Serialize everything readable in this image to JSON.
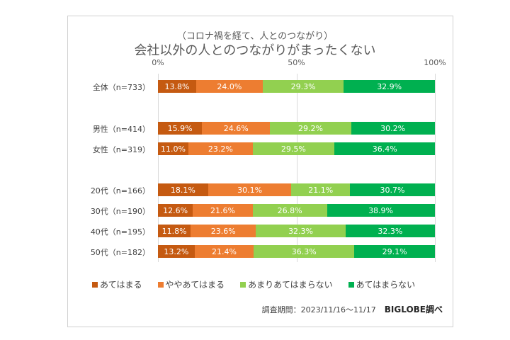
{
  "chart_data": {
    "type": "bar",
    "orientation": "horizontal",
    "stacked": "100%",
    "subtitle": "（コロナ禍を経て、人とのつながり）",
    "title": "会社以外の人とのつながりがまったくない",
    "x_ticks": [
      "0%",
      "50%",
      "100%"
    ],
    "xlim": [
      0,
      100
    ],
    "grid": true,
    "legend_position": "bottom",
    "categories": [
      "全体（n=733）",
      "男性（n=414）",
      "女性（n=319）",
      "20代（n=166）",
      "30代（n=190）",
      "40代（n=195）",
      "50代（n=182）"
    ],
    "series": [
      {
        "name": "あてはまる",
        "color": "#C55A11",
        "values": [
          13.8,
          15.9,
          11.0,
          18.1,
          12.6,
          11.8,
          13.2
        ],
        "labels": [
          "13.8%",
          "15.9%",
          "11.0%",
          "18.1%",
          "12.6%",
          "11.8%",
          "13.2%"
        ]
      },
      {
        "name": "ややあてはまる",
        "color": "#ED7D31",
        "values": [
          24.0,
          24.6,
          23.2,
          30.1,
          21.6,
          23.6,
          21.4
        ],
        "labels": [
          "24.0%",
          "24.6%",
          "23.2%",
          "30.1%",
          "21.6%",
          "23.6%",
          "21.4%"
        ]
      },
      {
        "name": "あまりあてはまらない",
        "color": "#92D050",
        "values": [
          29.3,
          29.2,
          29.5,
          21.1,
          26.8,
          32.3,
          36.3
        ],
        "labels": [
          "29.3%",
          "29.2%",
          "29.5%",
          "21.1%",
          "26.8%",
          "32.3%",
          "36.3%"
        ]
      },
      {
        "name": "あてはまらない",
        "color": "#00B050",
        "values": [
          32.9,
          30.2,
          36.4,
          30.7,
          38.9,
          32.3,
          29.1
        ],
        "labels": [
          "32.9%",
          "30.2%",
          "36.4%",
          "30.7%",
          "38.9%",
          "32.3%",
          "29.1%"
        ]
      }
    ]
  },
  "footer": {
    "period": "調査期間：2023/11/16～11/17",
    "source": "BIGLOBE調べ"
  }
}
